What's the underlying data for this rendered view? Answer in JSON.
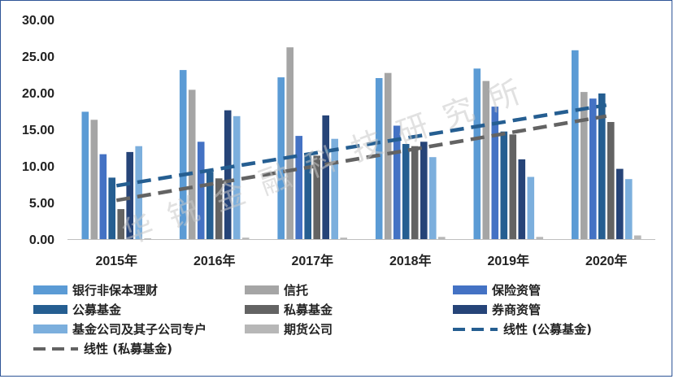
{
  "chart_data": {
    "type": "bar",
    "categories": [
      "2015年",
      "2016年",
      "2017年",
      "2018年",
      "2019年",
      "2020年"
    ],
    "ylim": [
      0,
      30
    ],
    "yticks": [
      "0.00",
      "5.00",
      "10.00",
      "15.00",
      "20.00",
      "25.00",
      "30.00"
    ],
    "grid": false,
    "legend_position": "bottom",
    "series": [
      {
        "name": "银行非保本理财",
        "color": "#5b9bd5",
        "values": [
          17.4,
          23.1,
          22.1,
          22.0,
          23.3,
          25.8
        ]
      },
      {
        "name": "信托",
        "color": "#a5a5a5",
        "values": [
          16.3,
          20.4,
          26.2,
          22.7,
          21.6,
          20.1
        ]
      },
      {
        "name": "保险资管",
        "color": "#4472c4",
        "values": [
          11.6,
          13.3,
          14.1,
          15.5,
          18.1,
          19.2
        ]
      },
      {
        "name": "公募基金",
        "color": "#255e91",
        "values": [
          8.4,
          9.2,
          11.6,
          13.0,
          14.7,
          19.9
        ]
      },
      {
        "name": "私募基金",
        "color": "#636363",
        "values": [
          4.1,
          8.3,
          11.4,
          12.7,
          14.3,
          16.0
        ]
      },
      {
        "name": "券商资管",
        "color": "#264478",
        "values": [
          11.9,
          17.6,
          16.9,
          13.3,
          10.9,
          9.6
        ]
      },
      {
        "name": "基金公司及其子公司专户",
        "color": "#7cafdd",
        "values": [
          12.7,
          16.8,
          13.7,
          11.2,
          8.5,
          8.2
        ]
      },
      {
        "name": "期货公司",
        "color": "#b7b7b7",
        "values": [
          0.1,
          0.2,
          0.2,
          0.3,
          0.3,
          0.5
        ]
      }
    ],
    "trendlines": [
      {
        "name": "线性 (公募基金)",
        "color": "#255e91",
        "from": 7.3,
        "to": 18.3
      },
      {
        "name": "线性 (私募基金)",
        "color": "#636363",
        "from": 5.3,
        "to": 16.8
      }
    ],
    "watermark": "华锐金融科技研究所"
  }
}
